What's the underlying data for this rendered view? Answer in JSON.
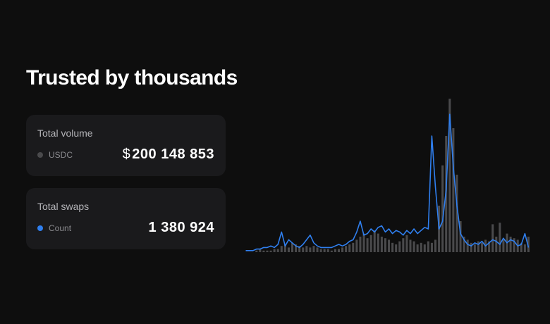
{
  "header": {
    "title": "Trusted by thousands"
  },
  "cards": [
    {
      "title": "Total volume",
      "currency": "$",
      "value": "200 148 853"
    },
    {
      "title": "Total swaps",
      "value": "1 380 924"
    }
  ],
  "chart_data": {
    "type": "combo",
    "ylim": [
      0,
      100
    ],
    "series": [
      {
        "name": "USDC",
        "type": "bar",
        "color": "#4a4a4c",
        "values": [
          0,
          0,
          0,
          1,
          2,
          1,
          1,
          1,
          2,
          2,
          4,
          5,
          3,
          6,
          5,
          4,
          3,
          4,
          3,
          4,
          3,
          2,
          2,
          2,
          1,
          2,
          2,
          3,
          4,
          5,
          6,
          8,
          10,
          12,
          9,
          11,
          14,
          12,
          10,
          9,
          8,
          6,
          5,
          7,
          9,
          11,
          8,
          7,
          5,
          6,
          5,
          7,
          6,
          8,
          30,
          56,
          75,
          99,
          80,
          50,
          20,
          10,
          8,
          6,
          5,
          7,
          6,
          8,
          7,
          18,
          10,
          19,
          8,
          12,
          10,
          9,
          8,
          6,
          5,
          10
        ]
      },
      {
        "name": "Count",
        "type": "line",
        "color": "#2f7fef",
        "values": [
          1,
          1,
          1,
          2,
          2,
          3,
          3,
          4,
          3,
          5,
          13,
          4,
          8,
          6,
          4,
          3,
          5,
          8,
          11,
          6,
          4,
          3,
          3,
          3,
          3,
          4,
          5,
          4,
          5,
          7,
          8,
          13,
          20,
          11,
          12,
          15,
          13,
          16,
          17,
          13,
          15,
          12,
          14,
          13,
          11,
          14,
          12,
          15,
          12,
          14,
          16,
          15,
          75,
          42,
          15,
          20,
          40,
          89,
          55,
          30,
          12,
          8,
          5,
          4,
          6,
          5,
          7,
          4,
          6,
          8,
          7,
          5,
          9,
          6,
          8,
          7,
          4,
          5,
          12,
          3
        ]
      }
    ]
  }
}
